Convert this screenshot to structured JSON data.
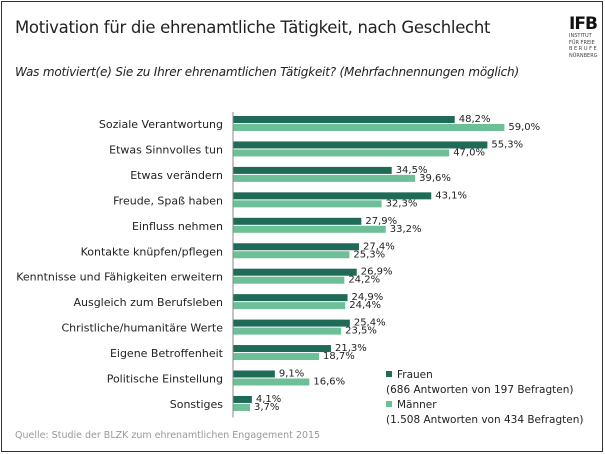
{
  "chart_data": {
    "type": "bar",
    "orientation": "horizontal",
    "title": "Motivation für die ehrenamtliche Tätigkeit, nach Geschlecht",
    "subtitle": "Was motiviert(e) Sie zu Ihrer ehrenamtlichen Tätigkeit? (Mehrfachnennungen möglich)",
    "categories": [
      "Soziale Verantwortung",
      "Etwas Sinnvolles tun",
      "Etwas verändern",
      "Freude, Spaß haben",
      "Einfluss nehmen",
      "Kontakte knüpfen/pflegen",
      "Kenntnisse und Fähigkeiten erweitern",
      "Ausgleich zum Berufsleben",
      "Christliche/humanitäre Werte",
      "Eigene Betroffenheit",
      "Politische Einstellung",
      "Sonstiges"
    ],
    "series": [
      {
        "name": "Frauen",
        "note": "(686 Antworten von 197 Befragten)",
        "color": "#1f6b58",
        "values": [
          48.2,
          55.3,
          34.5,
          43.1,
          27.9,
          27.4,
          26.9,
          24.9,
          25.4,
          21.3,
          9.1,
          4.1
        ],
        "labels": [
          "48,2%",
          "55,3%",
          "34,5%",
          "43,1%",
          "27,9%",
          "27,4%",
          "26,9%",
          "24,9%",
          "25,4%",
          "21,3%",
          "9,1%",
          "4,1%"
        ]
      },
      {
        "name": "Männer",
        "note": "(1.508 Antworten von 434 Befragten)",
        "color": "#6dbf98",
        "values": [
          59.0,
          47.0,
          39.6,
          32.3,
          33.2,
          25.3,
          24.2,
          24.4,
          23.5,
          18.7,
          16.6,
          3.7
        ],
        "labels": [
          "59,0%",
          "47,0%",
          "39,6%",
          "32,3%",
          "33,2%",
          "25,3%",
          "24,2%",
          "24,4%",
          "23,5%",
          "18,7%",
          "16,6%",
          "3,7%"
        ]
      }
    ],
    "unit": "%",
    "grid": false,
    "legend_position": "bottom-right"
  },
  "source": "Quelle: Studie der BLZK zum ehrenamtlichen Engagement 2015",
  "logo": {
    "text": "IFB",
    "lines": [
      "INSTITUT",
      "FÜR FREIE",
      "BERUFE",
      "NÜRNBERG"
    ]
  }
}
